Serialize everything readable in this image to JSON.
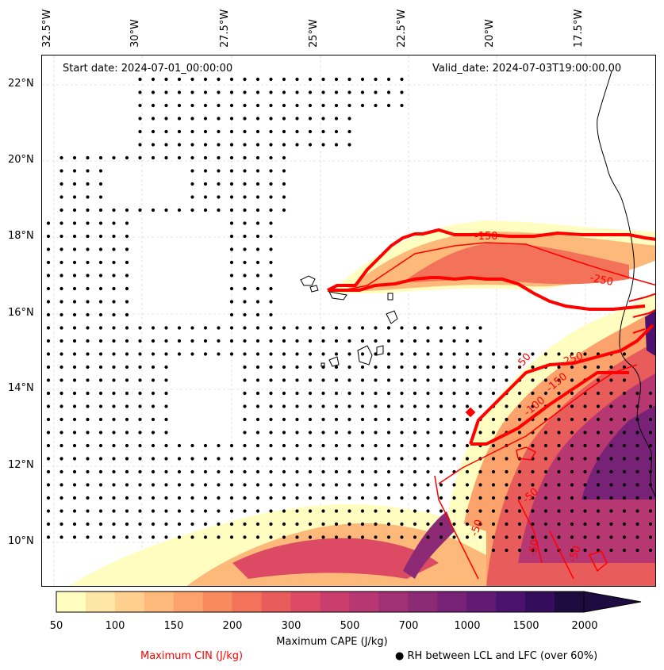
{
  "map": {
    "start_date": "Start date: 2024-07-01_00:00:00",
    "valid_date": "Valid_date: 2024-07-03T19:00:00.00",
    "lon_labels": [
      "32.5°W",
      "30°W",
      "27.5°W",
      "25°W",
      "22.5°W",
      "20°W",
      "17.5°W"
    ],
    "lat_labels": [
      "22°N",
      "20°N",
      "18°N",
      "16°N",
      "14°N",
      "12°N",
      "10°N"
    ],
    "contour_labels": [
      "-150",
      "-250",
      "-250",
      "-50",
      "-150",
      "-100",
      "-50",
      "-50",
      "-50",
      "-50"
    ]
  },
  "colorbar": {
    "ticks": [
      "50",
      "100",
      "150",
      "200",
      "300",
      "500",
      "700",
      "1000",
      "1500",
      "2000"
    ],
    "title": "Maximum CAPE (J/kg)",
    "colors": [
      "#fffdbf",
      "#fee6a6",
      "#fecf8e",
      "#fdb97a",
      "#fca26c",
      "#f88a5f",
      "#f3735a",
      "#e95c5c",
      "#dc4a64",
      "#c93e6c",
      "#b63771",
      "#a13174",
      "#8c2a76",
      "#772276",
      "#621a73",
      "#4b136e",
      "#340d5d",
      "#1e0b40"
    ]
  },
  "legend": {
    "cin_label": "Maximum CIN (J/kg)",
    "rh_label": "● RH between LCL and LFC (over 60%)",
    "cin_color": "#ff0000"
  }
}
